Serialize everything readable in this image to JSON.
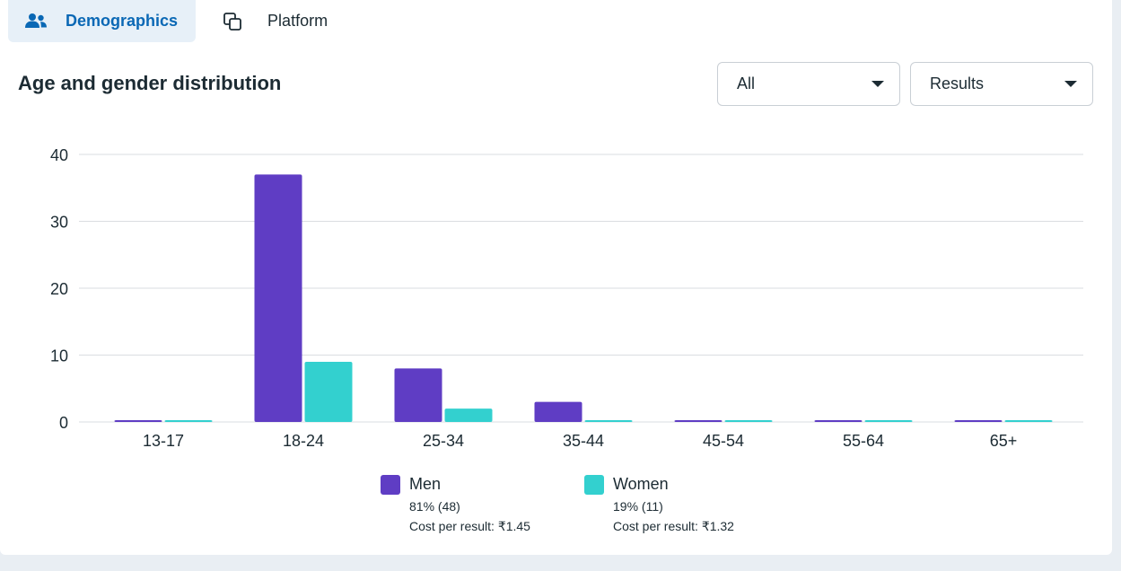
{
  "tabs": [
    {
      "label": "Demographics",
      "icon": "people-icon",
      "active": true
    },
    {
      "label": "Platform",
      "icon": "overlapping-squares-icon",
      "active": false
    }
  ],
  "section_title": "Age and gender distribution",
  "filters": {
    "audience": {
      "selected": "All"
    },
    "metric": {
      "selected": "Results"
    }
  },
  "colors": {
    "men": "#5f3dc4",
    "women": "#33d0cf",
    "grid": "#dadde1",
    "active_tab_bg": "#e7f0f8",
    "active_tab_text": "#0a68b5"
  },
  "chart_data": {
    "type": "bar",
    "categories": [
      "13-17",
      "18-24",
      "25-34",
      "35-44",
      "45-54",
      "55-64",
      "65+"
    ],
    "series": [
      {
        "name": "Men",
        "values": [
          0,
          37,
          8,
          3,
          0,
          0,
          0
        ]
      },
      {
        "name": "Women",
        "values": [
          0,
          9,
          2,
          0,
          0,
          0,
          0
        ]
      }
    ],
    "yticks": [
      0,
      10,
      20,
      30,
      40
    ],
    "ylim": [
      0,
      40
    ],
    "grid": true,
    "legend_position": "bottom"
  },
  "legend": [
    {
      "name": "Men",
      "share": "81% (48)",
      "cost": "Cost per result: ₹1.45"
    },
    {
      "name": "Women",
      "share": "19% (11)",
      "cost": "Cost per result: ₹1.32"
    }
  ]
}
